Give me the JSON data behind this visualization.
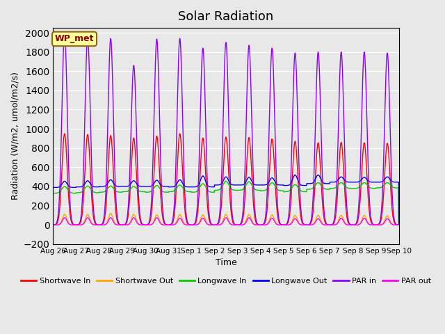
{
  "title": "Solar Radiation",
  "ylabel": "Radiation (W/m2, umol/m2/s)",
  "xlabel": "Time",
  "ylim": [
    -200,
    2050
  ],
  "yticks": [
    -200,
    0,
    200,
    400,
    600,
    800,
    1000,
    1200,
    1400,
    1600,
    1800,
    2000
  ],
  "background_color": "#e8e8e8",
  "plot_bg_color": "#e8e8e8",
  "grid_color": "#ffffff",
  "annotation_text": "WP_met",
  "annotation_box_color": "#ffff99",
  "annotation_box_edge": "#8B6914",
  "series": {
    "shortwave_in": {
      "color": "#ff0000",
      "label": "Shortwave In",
      "lw": 1.0
    },
    "shortwave_out": {
      "color": "#ffa500",
      "label": "Shortwave Out",
      "lw": 1.0
    },
    "longwave_in": {
      "color": "#00cc00",
      "label": "Longwave In",
      "lw": 1.0
    },
    "longwave_out": {
      "color": "#0000ff",
      "label": "Longwave Out",
      "lw": 1.0
    },
    "par_in": {
      "color": "#8b00ff",
      "label": "PAR in",
      "lw": 1.0
    },
    "par_out": {
      "color": "#ff00ff",
      "label": "PAR out",
      "lw": 1.0
    }
  },
  "n_days": 15,
  "xtick_labels": [
    "Aug 26",
    "Aug 27",
    "Aug 28",
    "Aug 29",
    "Aug 30",
    "Aug 31",
    "Sep 1",
    "Sep 2",
    "Sep 3",
    "Sep 4",
    "Sep 5",
    "Sep 6",
    "Sep 7",
    "Sep 8",
    "Sep 9",
    "Sep 10"
  ],
  "shortwave_in_peaks": [
    950,
    940,
    930,
    905,
    925,
    950,
    905,
    915,
    910,
    895,
    870,
    855,
    860,
    855,
    850
  ],
  "shortwave_out_peaks": [
    110,
    110,
    120,
    110,
    105,
    110,
    105,
    110,
    110,
    105,
    100,
    100,
    100,
    100,
    95
  ],
  "longwave_in_base": [
    330,
    335,
    340,
    345,
    340,
    345,
    340,
    360,
    360,
    355,
    345,
    370,
    380,
    380,
    385
  ],
  "longwave_in_peak": [
    400,
    405,
    405,
    400,
    410,
    415,
    430,
    455,
    450,
    440,
    420,
    440,
    440,
    440,
    440
  ],
  "longwave_out_base": [
    390,
    395,
    400,
    400,
    400,
    395,
    395,
    415,
    415,
    415,
    410,
    430,
    445,
    445,
    445
  ],
  "longwave_out_peak": [
    455,
    460,
    470,
    460,
    465,
    470,
    510,
    500,
    495,
    490,
    520,
    520,
    500,
    495,
    500
  ],
  "par_in_peaks": [
    2000,
    1960,
    1940,
    1660,
    1935,
    1940,
    1840,
    1900,
    1870,
    1840,
    1790,
    1800,
    1800,
    1800,
    1790
  ],
  "par_out_peaks": [
    75,
    75,
    75,
    75,
    75,
    70,
    70,
    75,
    75,
    70,
    65,
    65,
    70,
    70,
    65
  ]
}
